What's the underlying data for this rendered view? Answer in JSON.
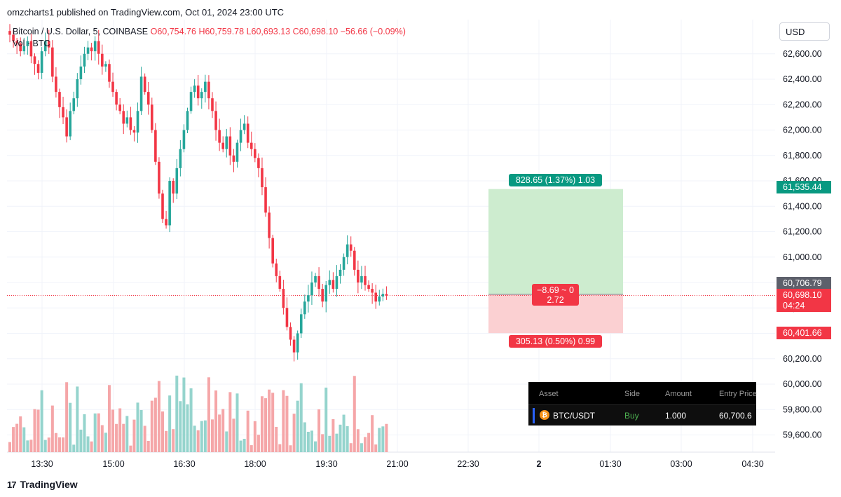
{
  "header": {
    "published_text": "omzcharts1 published on TradingView.com, Oct 01, 2024 23:00 UTC"
  },
  "legend": {
    "symbol": "Bitcoin / U.S. Dollar, 5, COINBASE",
    "open": "O60,754.76",
    "high": "H60,759.78",
    "low": "L60,693.13",
    "close": "C60,698.10",
    "change": "−56.66 (−0.09%)",
    "volume_label": "Vol · BTC"
  },
  "currency": "USD",
  "footer": {
    "brand": "TradingView",
    "mark": "17"
  },
  "colors": {
    "up": "#26a69a",
    "down": "#f23645",
    "up_vol": "#95d4cd",
    "down_vol": "#f5a6a8",
    "profit_zone": "#cdeccf",
    "loss_zone": "#fbd0d2",
    "grid": "#f0f3fa"
  },
  "position_tool": {
    "target_label": "828.65 (1.37%) 1.03",
    "stop_label": "305.13 (0.50%) 0.99",
    "center_line1": "−8.69 ~ 0",
    "center_line2": "2.72"
  },
  "price_tags": {
    "target": "61,535.44",
    "entry": "60,706.79",
    "last": "60,698.10",
    "countdown": "04:24",
    "stop": "60,401.66"
  },
  "positions_table": {
    "headers": [
      "Asset",
      "Side",
      "Amount",
      "Entry Price"
    ],
    "row": {
      "asset": "BTC/USDT",
      "side": "Buy",
      "amount": "1.000",
      "entry_price": "60,700.6"
    }
  },
  "chart_data": {
    "type": "candlestick",
    "interval": "5",
    "y_axis": {
      "min": 59500,
      "max": 62750,
      "ticks": [
        59600,
        59800,
        60000,
        60200,
        60400,
        60600,
        60800,
        61000,
        61200,
        61400,
        61600,
        61800,
        62000,
        62200,
        62400,
        62600
      ]
    },
    "x_tick_labels": [
      "13:30",
      "15:00",
      "16:30",
      "18:00",
      "19:30",
      "21:00",
      "22:30",
      "2",
      "01:30",
      "03:00",
      "04:30"
    ],
    "price_close_path": [
      62750,
      62700,
      62680,
      62620,
      62660,
      62700,
      62580,
      62520,
      62450,
      62620,
      62700,
      62650,
      62420,
      62300,
      62180,
      62100,
      61950,
      62150,
      62250,
      62400,
      62500,
      62600,
      62650,
      62620,
      62700,
      62600,
      62500,
      62520,
      62380,
      62300,
      62200,
      62150,
      62050,
      62100,
      62000,
      61980,
      62150,
      62420,
      62300,
      62200,
      62000,
      61750,
      61500,
      61300,
      61250,
      61600,
      61500,
      61700,
      61850,
      62000,
      62150,
      62300,
      62350,
      62250,
      62300,
      62380,
      62250,
      62150,
      62000,
      61900,
      61850,
      61950,
      61800,
      61750,
      61900,
      62000,
      62050,
      61900,
      61850,
      61780,
      61700,
      61550,
      61350,
      61150,
      60950,
      60850,
      60750,
      60600,
      60450,
      60350,
      60250,
      60400,
      60550,
      60650,
      60700,
      60800,
      60850,
      60750,
      60650,
      60780,
      60820,
      60750,
      60850,
      60900,
      61000,
      61100,
      61050,
      60900,
      60800,
      60850,
      60780,
      60750,
      60720,
      60650,
      60690,
      60710,
      60698
    ],
    "volume_scale": "relative",
    "position": {
      "side": "long",
      "entry": 60706.79,
      "target": 61535.44,
      "stop": 60401.66,
      "last": 60698.1
    }
  }
}
